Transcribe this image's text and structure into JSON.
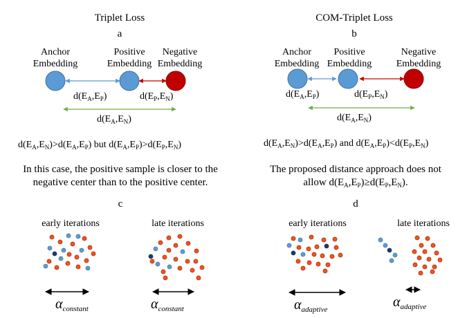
{
  "left": {
    "title": "Triplet Loss",
    "panel_top": "a",
    "anchor_label": [
      "Anchor",
      "Embedding"
    ],
    "positive_label": [
      "Positive",
      "Embedding"
    ],
    "negative_label": [
      "Negative",
      "Embedding"
    ],
    "dist_ap": [
      "d(E",
      "A",
      ",E",
      "P",
      ")"
    ],
    "dist_pn": [
      "d(E",
      "P",
      ",E",
      "N",
      ")"
    ],
    "dist_an": [
      "d(E",
      "A",
      ",E",
      "N",
      ")"
    ],
    "inequality": [
      "d(E",
      "A",
      ",E",
      "N",
      ")>d(E",
      "A",
      ",E",
      "P",
      ") but d(E",
      "A",
      ",E",
      "P",
      ")>d(E",
      "P",
      ",E",
      "N",
      ")"
    ],
    "caption_line1": "In this case, the positive sample is closer to the",
    "caption_line2": "negative center than to the positive center.",
    "panel_bottom": "c",
    "early_label": "early iterations",
    "late_label": "late iterations",
    "alpha_symbol": "α",
    "alpha_sub": "constant"
  },
  "right": {
    "title": "COM-Triplet Loss",
    "panel_top": "b",
    "anchor_label": [
      "Anchor",
      "Embedding"
    ],
    "positive_label": [
      "Positive",
      "Embedding"
    ],
    "negative_label": [
      "Negative",
      "Embedding"
    ],
    "dist_ap": [
      "d(E",
      "A",
      ",E",
      "P",
      ")"
    ],
    "dist_pn": [
      "d(E",
      "P",
      ",E",
      "N",
      ")"
    ],
    "dist_an": [
      "d(E",
      "A",
      ",E",
      "N",
      ")"
    ],
    "inequality": [
      "d(E",
      "A",
      ",E",
      "N",
      ")>d(E",
      "A",
      ",E",
      "P",
      ") and d(E",
      "A",
      ",E",
      "P",
      ")<d(E",
      "P",
      ",E",
      "N",
      ")"
    ],
    "caption_line1": "The proposed distance approach does not",
    "caption_line2": [
      "allow d(E",
      "A",
      ",E",
      "P",
      ")≥d(E",
      "P",
      ",E",
      "N",
      ")."
    ],
    "panel_bottom": "d",
    "early_label": "early iterations",
    "late_label": "late iterations",
    "alpha_symbol": "α",
    "alpha_sub": "adaptive"
  },
  "colors": {
    "blue_node": "#5b9bd5",
    "blue_stroke": "#41719c",
    "red_node": "#c00000",
    "red_stroke": "#8b0000",
    "arrow_blue": "#5b9bd5",
    "arrow_red": "#c00000",
    "arrow_green": "#70ad47",
    "dot_orange": "#f4511e",
    "dot_orange_stroke": "#8b2500",
    "dot_blue": "#5b9bd5",
    "dot_navy": "#1f3864"
  }
}
